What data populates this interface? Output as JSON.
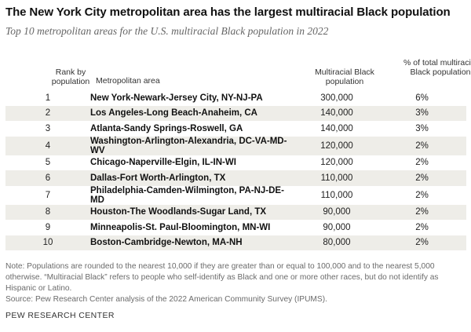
{
  "title": "The New York City metropolitan area has the largest multiracial Black population",
  "subtitle": "Top 10 metropolitan areas for the U.S. multiracial Black population in 2022",
  "headers": {
    "rank": "Rank by population",
    "metro": "Metropolitan area",
    "population": "Multiracial Black population",
    "percent": "% of total multiracial Black population"
  },
  "rows": [
    {
      "rank": "1",
      "metro": "New York-Newark-Jersey City, NY-NJ-PA",
      "population": "300,000",
      "percent": "6%"
    },
    {
      "rank": "2",
      "metro": "Los Angeles-Long Beach-Anaheim, CA",
      "population": "140,000",
      "percent": "3%"
    },
    {
      "rank": "3",
      "metro": "Atlanta-Sandy Springs-Roswell, GA",
      "population": "140,000",
      "percent": "3%"
    },
    {
      "rank": "4",
      "metro": "Washington-Arlington-Alexandria, DC-VA-MD-WV",
      "population": "120,000",
      "percent": "2%"
    },
    {
      "rank": "5",
      "metro": "Chicago-Naperville-Elgin, IL-IN-WI",
      "population": "120,000",
      "percent": "2%"
    },
    {
      "rank": "6",
      "metro": "Dallas-Fort Worth-Arlington, TX",
      "population": "110,000",
      "percent": "2%"
    },
    {
      "rank": "7",
      "metro": "Philadelphia-Camden-Wilmington, PA-NJ-DE-MD",
      "population": "110,000",
      "percent": "2%"
    },
    {
      "rank": "8",
      "metro": "Houston-The Woodlands-Sugar Land, TX",
      "population": "90,000",
      "percent": "2%"
    },
    {
      "rank": "9",
      "metro": "Minneapolis-St. Paul-Bloomington, MN-WI",
      "population": "90,000",
      "percent": "2%"
    },
    {
      "rank": "10",
      "metro": "Boston-Cambridge-Newton, MA-NH",
      "population": "80,000",
      "percent": "2%"
    }
  ],
  "note": "Note: Populations are rounded to the nearest 10,000 if they are greater than or equal to 100,000 and to the nearest 5,000 otherwise. “Multiracial Black” refers to people who self-identify as Black and one or more other races, but do not identify as Hispanic or Latino.",
  "source": "Source: Pew Research Center analysis of the 2022 American Community Survey (IPUMS).",
  "footer": "PEW RESEARCH CENTER",
  "colors": {
    "row_shade": "#eeede8",
    "note_text": "#6b6b6b"
  }
}
